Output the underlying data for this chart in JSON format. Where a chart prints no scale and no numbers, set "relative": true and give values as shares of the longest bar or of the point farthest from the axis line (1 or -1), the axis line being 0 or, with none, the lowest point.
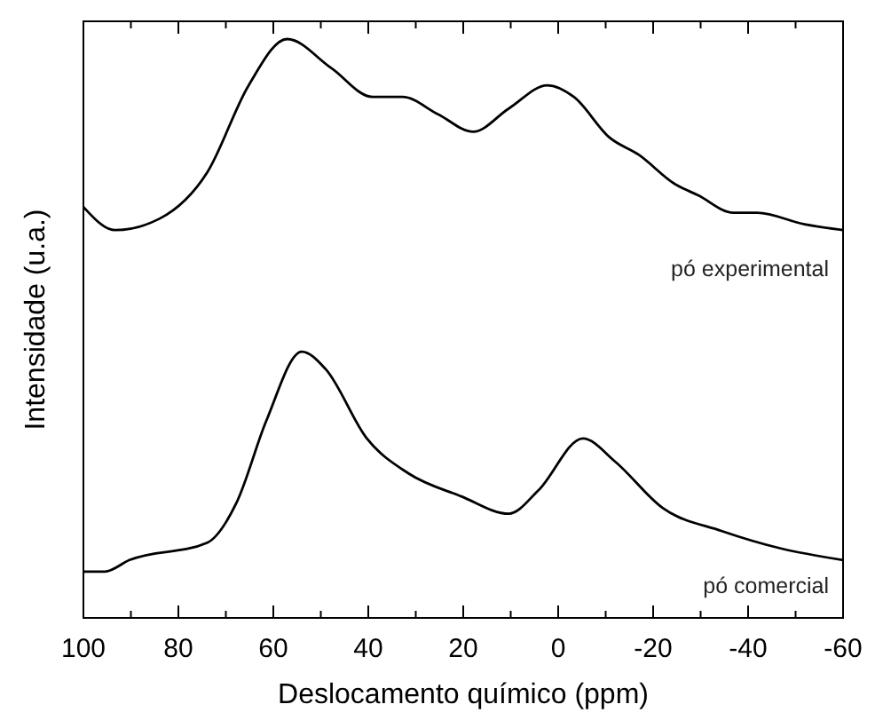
{
  "chart_data": {
    "type": "line",
    "relative": true,
    "xlabel": "Deslocamento químico (ppm)",
    "ylabel": "Intensidade (u.a.)",
    "xlim": [
      100,
      -60
    ],
    "xticks": [
      100,
      {
        "value": 90,
        "label": null
      },
      80,
      {
        "value": 70,
        "label": null
      },
      60,
      {
        "value": 50,
        "label": null
      },
      40,
      {
        "value": 30,
        "label": null
      },
      20,
      {
        "value": 10,
        "label": null
      },
      0,
      {
        "value": -10,
        "label": null
      },
      -20,
      {
        "value": -30,
        "label": null
      },
      -40,
      {
        "value": -50,
        "label": null
      },
      -60
    ],
    "marker": "none",
    "line_style": "solid",
    "grid": false,
    "series": [
      {
        "name": "pó experimental",
        "color": "#000000",
        "x": [
          100,
          93.3,
          83.9,
          73.9,
          65.2,
          57.1,
          47.8,
          39.1,
          32.8,
          25.3,
          17.9,
          10.4,
          2.3,
          -3.3,
          -10.8,
          -17,
          -24.5,
          -29.5,
          -36.9,
          -41.9,
          -51.9,
          -60
        ],
        "values": [
          0.71,
          0.67,
          0.69,
          0.77,
          0.92,
          1.0,
          0.95,
          0.9,
          0.9,
          0.87,
          0.84,
          0.88,
          0.92,
          0.9,
          0.83,
          0.8,
          0.75,
          0.73,
          0.7,
          0.7,
          0.68,
          0.67
        ]
      },
      {
        "name": "pó comercial",
        "color": "#000000",
        "x": [
          100,
          95.5,
          90.3,
          73.9,
          67.7,
          61.5,
          54,
          49,
          40.3,
          31.6,
          20.4,
          10.4,
          4.2,
          -5.2,
          -12,
          -22,
          -34.5,
          -46.9,
          -60
        ],
        "values": [
          0.08,
          0.08,
          0.1,
          0.13,
          0.2,
          0.34,
          0.46,
          0.43,
          0.31,
          0.25,
          0.21,
          0.18,
          0.22,
          0.31,
          0.27,
          0.19,
          0.15,
          0.12,
          0.1
        ]
      }
    ]
  }
}
